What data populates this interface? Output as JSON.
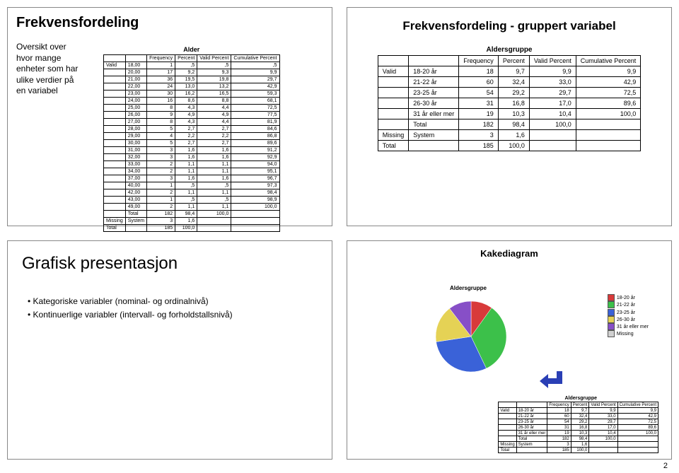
{
  "page_number": "2",
  "q1": {
    "title": "Frekvensfordeling",
    "sidetext_lines": [
      "Oversikt over",
      "hvor mange",
      "enheter som har",
      "ulike verdier på",
      "en variabel"
    ],
    "table_caption": "Alder",
    "headers": [
      "",
      "",
      "Frequency",
      "Percent",
      "Valid Percent",
      "Cumulative Percent"
    ],
    "rows": [
      [
        "Valid",
        "18,00",
        "1",
        ",5",
        ",5",
        ",5"
      ],
      [
        "",
        "20,00",
        "17",
        "9,2",
        "9,3",
        "9,9"
      ],
      [
        "",
        "21,00",
        "36",
        "19,5",
        "19,8",
        "29,7"
      ],
      [
        "",
        "22,00",
        "24",
        "13,0",
        "13,2",
        "42,9"
      ],
      [
        "",
        "23,00",
        "30",
        "16,2",
        "16,5",
        "59,3"
      ],
      [
        "",
        "24,00",
        "16",
        "8,6",
        "8,8",
        "68,1"
      ],
      [
        "",
        "25,00",
        "8",
        "4,3",
        "4,4",
        "72,5"
      ],
      [
        "",
        "26,00",
        "9",
        "4,9",
        "4,9",
        "77,5"
      ],
      [
        "",
        "27,00",
        "8",
        "4,3",
        "4,4",
        "81,9"
      ],
      [
        "",
        "28,00",
        "5",
        "2,7",
        "2,7",
        "84,6"
      ],
      [
        "",
        "29,00",
        "4",
        "2,2",
        "2,2",
        "86,8"
      ],
      [
        "",
        "30,00",
        "5",
        "2,7",
        "2,7",
        "89,6"
      ],
      [
        "",
        "31,00",
        "3",
        "1,6",
        "1,6",
        "91,2"
      ],
      [
        "",
        "32,00",
        "3",
        "1,6",
        "1,6",
        "92,9"
      ],
      [
        "",
        "33,00",
        "2",
        "1,1",
        "1,1",
        "94,0"
      ],
      [
        "",
        "34,00",
        "2",
        "1,1",
        "1,1",
        "95,1"
      ],
      [
        "",
        "37,00",
        "3",
        "1,6",
        "1,6",
        "96,7"
      ],
      [
        "",
        "40,00",
        "1",
        ",5",
        ",5",
        "97,3"
      ],
      [
        "",
        "42,00",
        "2",
        "1,1",
        "1,1",
        "98,4"
      ],
      [
        "",
        "43,00",
        "1",
        ",5",
        ",5",
        "98,9"
      ],
      [
        "",
        "49,00",
        "2",
        "1,1",
        "1,1",
        "100,0"
      ],
      [
        "",
        "Total",
        "182",
        "98,4",
        "100,0",
        ""
      ],
      [
        "Missing",
        "System",
        "3",
        "1,6",
        "",
        ""
      ],
      [
        "Total",
        "",
        "185",
        "100,0",
        "",
        ""
      ]
    ]
  },
  "q2": {
    "title": "Frekvensfordeling - gruppert variabel",
    "table_caption": "Aldersgruppe",
    "headers": [
      "",
      "",
      "Frequency",
      "Percent",
      "Valid Percent",
      "Cumulative Percent"
    ],
    "rows": [
      [
        "Valid",
        "18-20 år",
        "18",
        "9,7",
        "9,9",
        "9,9"
      ],
      [
        "",
        "21-22 år",
        "60",
        "32,4",
        "33,0",
        "42,9"
      ],
      [
        "",
        "23-25 år",
        "54",
        "29,2",
        "29,7",
        "72,5"
      ],
      [
        "",
        "26-30 år",
        "31",
        "16,8",
        "17,0",
        "89,6"
      ],
      [
        "",
        "31 år eller mer",
        "19",
        "10,3",
        "10,4",
        "100,0"
      ],
      [
        "",
        "Total",
        "182",
        "98,4",
        "100,0",
        ""
      ],
      [
        "Missing",
        "System",
        "3",
        "1,6",
        "",
        ""
      ],
      [
        "Total",
        "",
        "185",
        "100,0",
        "",
        ""
      ]
    ]
  },
  "q3": {
    "title": "Grafisk presentasjon",
    "bullets": [
      "Kategoriske variabler (nominal- og ordinalnivå)",
      "Kontinuerlige variabler (intervall- og forholdstallsnivå)"
    ]
  },
  "q4": {
    "title": "Kakediagram",
    "pie_subtitle": "Aldersgruppe",
    "slices": [
      {
        "label": "18-20 år",
        "pct": 9.9,
        "color": "#d83a3a"
      },
      {
        "label": "21-22 år",
        "pct": 33.0,
        "color": "#3cc04a"
      },
      {
        "label": "23-25 år",
        "pct": 29.7,
        "color": "#3a62d8"
      },
      {
        "label": "26-30 år",
        "pct": 17.0,
        "color": "#e5d255"
      },
      {
        "label": "31 år eller mer",
        "pct": 10.4,
        "color": "#874fc7"
      },
      {
        "label": "Missing",
        "pct": 0.0,
        "color": "#d0d0d0"
      }
    ],
    "legend_labels": [
      "18-20 år",
      "21-22 år",
      "23-25 år",
      "26-30 år",
      "31 år eller mer",
      "Missing"
    ],
    "arrow_color": "#2a3fb5",
    "mini_caption": "Aldersgruppe",
    "mini_headers": [
      "",
      "",
      "Frequency",
      "Percent",
      "Valid Percent",
      "Cumulative Percent"
    ],
    "mini_rows": [
      [
        "Valid",
        "18-20 år",
        "18",
        "9,7",
        "9,9",
        "9,9"
      ],
      [
        "",
        "21-22 år",
        "60",
        "32,4",
        "33,0",
        "42,9"
      ],
      [
        "",
        "23-25 år",
        "54",
        "29,2",
        "29,7",
        "72,5"
      ],
      [
        "",
        "26-30 år",
        "31",
        "16,8",
        "17,0",
        "89,6"
      ],
      [
        "",
        "31 år eller mer",
        "19",
        "10,3",
        "10,4",
        "100,0"
      ],
      [
        "",
        "Total",
        "182",
        "98,4",
        "100,0",
        ""
      ],
      [
        "Missing",
        "System",
        "3",
        "1,6",
        "",
        ""
      ],
      [
        "Total",
        "",
        "185",
        "100,0",
        "",
        ""
      ]
    ]
  }
}
